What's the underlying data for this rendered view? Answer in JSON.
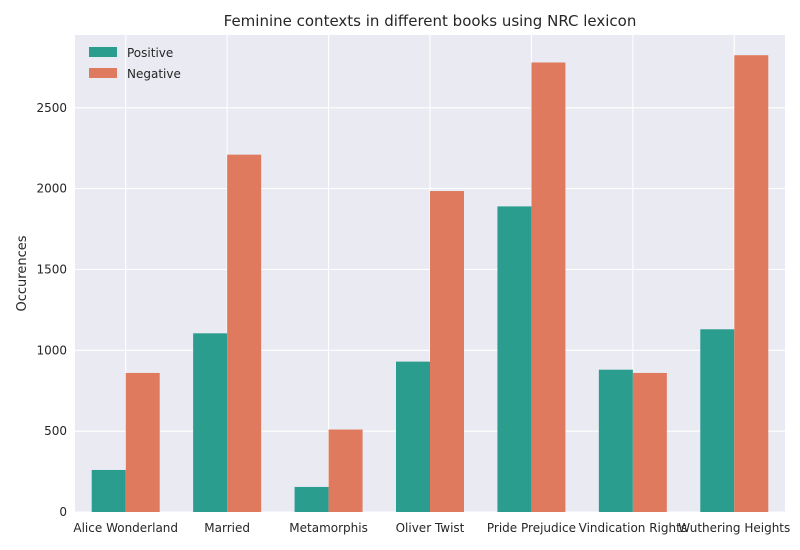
{
  "chart_data": {
    "type": "bar",
    "title": "Feminine contexts in different books using NRC lexicon",
    "xlabel": "",
    "ylabel": "Occurences",
    "categories": [
      "Alice Wonderland",
      "Married",
      "Metamorphis",
      "Oliver Twist",
      "Pride Prejudice",
      "Vindication Rights",
      "Wuthering Heights"
    ],
    "series": [
      {
        "name": "Positive",
        "color": "#2a9d8f",
        "values": [
          260,
          1105,
          155,
          930,
          1890,
          880,
          1130
        ]
      },
      {
        "name": "Negative",
        "color": "#e07a5f",
        "values": [
          860,
          2210,
          510,
          1985,
          2780,
          860,
          2825
        ]
      }
    ],
    "ylim": [
      0,
      2950
    ],
    "yticks": [
      0,
      500,
      1000,
      1500,
      2000,
      2500
    ],
    "grid": true,
    "legend_position": "top-left",
    "background_color": "#eaeaf2"
  }
}
